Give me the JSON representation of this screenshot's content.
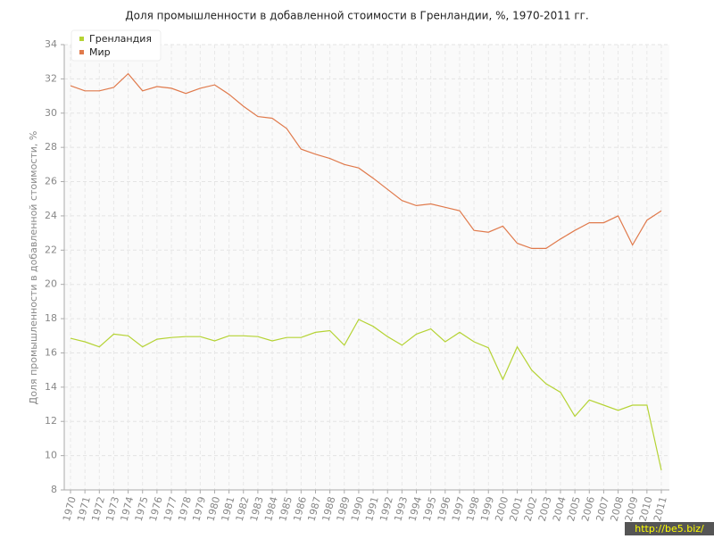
{
  "chart_data": {
    "type": "line",
    "title": "Доля промышленности в добавленной стоимости в Гренландии, %, 1970-2011 гг.",
    "y_label": "Доля промышленности в добавленной стоимости, %",
    "watermark": "http://be5.biz/",
    "categories": [
      "1970",
      "1971",
      "1972",
      "1973",
      "1974",
      "1975",
      "1976",
      "1977",
      "1978",
      "1979",
      "1980",
      "1981",
      "1982",
      "1983",
      "1984",
      "1985",
      "1986",
      "1987",
      "1988",
      "1989",
      "1990",
      "1991",
      "1992",
      "1993",
      "1994",
      "1995",
      "1996",
      "1997",
      "1998",
      "1999",
      "2000",
      "2001",
      "2002",
      "2003",
      "2004",
      "2005",
      "2006",
      "2007",
      "2008",
      "2009",
      "2010",
      "2011"
    ],
    "series": [
      {
        "name": "Гренландия",
        "color": "#b5d334",
        "values": [
          16.85,
          16.65,
          16.35,
          17.1,
          17.0,
          16.35,
          16.8,
          16.9,
          16.95,
          16.95,
          16.7,
          17.0,
          17.0,
          16.95,
          16.7,
          16.9,
          16.9,
          17.2,
          17.3,
          16.45,
          17.95,
          17.55,
          16.95,
          16.45,
          17.1,
          17.4,
          16.65,
          17.2,
          16.65,
          16.3,
          14.45,
          16.35,
          15.0,
          14.2,
          13.7,
          12.3,
          13.25,
          12.95,
          12.65,
          12.95,
          12.95,
          9.15
        ]
      },
      {
        "name": "Мир",
        "color": "#e07a4c",
        "values": [
          31.6,
          31.3,
          31.3,
          31.5,
          32.3,
          31.3,
          31.55,
          31.45,
          31.15,
          31.45,
          31.65,
          31.1,
          30.4,
          29.8,
          29.7,
          29.1,
          27.9,
          27.6,
          27.35,
          27.0,
          26.8,
          26.2,
          25.55,
          24.9,
          24.6,
          24.7,
          24.5,
          24.3,
          23.15,
          23.05,
          23.4,
          22.4,
          22.1,
          22.1,
          22.65,
          23.15,
          23.6,
          23.6,
          24.0,
          22.3,
          23.75,
          24.3
        ]
      }
    ],
    "ylim": [
      8,
      34
    ],
    "yticks": [
      8,
      10,
      12,
      14,
      16,
      18,
      20,
      22,
      24,
      26,
      28,
      30,
      32,
      34
    ],
    "grid": true,
    "legend": "top-left"
  }
}
